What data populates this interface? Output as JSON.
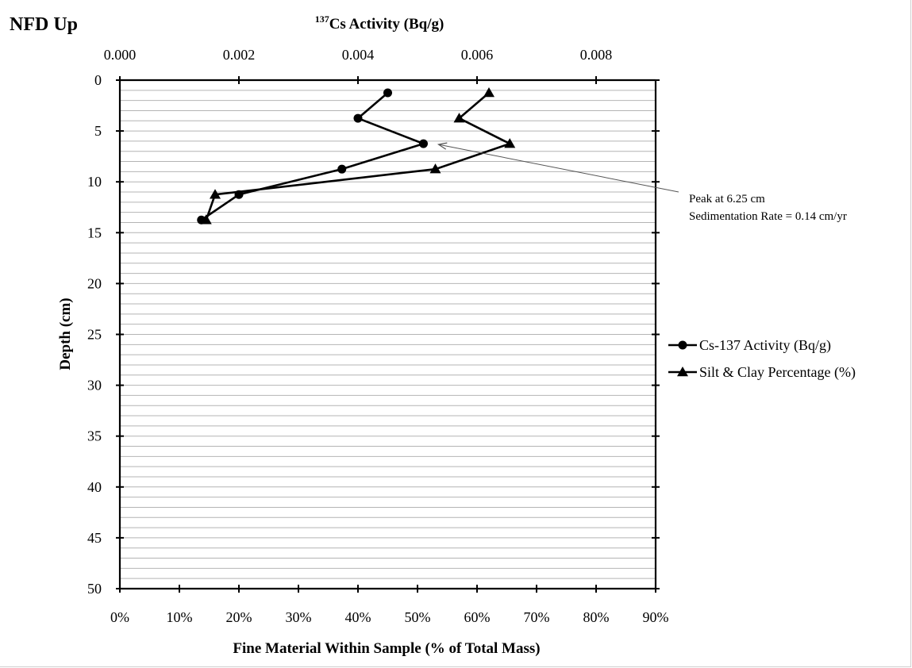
{
  "chart_data": {
    "type": "line",
    "title": "NFD Up",
    "top_axis": {
      "label_superscript": "137",
      "label_text": "Cs Activity (Bq/g)",
      "range": [
        0,
        0.009
      ],
      "ticks": [
        0.0,
        0.002,
        0.004,
        0.006,
        0.008
      ],
      "tick_labels": [
        "0.000",
        "0.002",
        "0.004",
        "0.006",
        "0.008"
      ]
    },
    "bottom_axis": {
      "label": "Fine Material Within Sample (% of Total Mass)",
      "range": [
        0,
        90
      ],
      "ticks": [
        0,
        10,
        20,
        30,
        40,
        50,
        60,
        70,
        80,
        90
      ],
      "tick_labels": [
        "0%",
        "10%",
        "20%",
        "30%",
        "40%",
        "50%",
        "60%",
        "70%",
        "80%",
        "90%"
      ]
    },
    "y_axis": {
      "label": "Depth (cm)",
      "range": [
        0,
        50
      ],
      "reversed": true,
      "ticks": [
        0,
        5,
        10,
        15,
        20,
        25,
        30,
        35,
        40,
        45,
        50
      ],
      "tick_labels": [
        "0",
        "5",
        "10",
        "15",
        "20",
        "25",
        "30",
        "35",
        "40",
        "45",
        "50"
      ],
      "gridline_step": 1
    },
    "grid": true,
    "legend_position": "right",
    "series": [
      {
        "name": "Cs-137 Activity (Bq/g)",
        "axis": "top",
        "marker": "circle",
        "points": [
          {
            "value": 0.0045,
            "depth": 1.25
          },
          {
            "value": 0.004,
            "depth": 3.75
          },
          {
            "value": 0.0051,
            "depth": 6.25
          },
          {
            "value": 0.00373,
            "depth": 8.75
          },
          {
            "value": 0.002,
            "depth": 11.25
          },
          {
            "value": 0.00137,
            "depth": 13.75
          }
        ]
      },
      {
        "name": "Silt & Clay Percentage (%)",
        "axis": "bottom",
        "marker": "triangle",
        "points": [
          {
            "value": 62,
            "depth": 1.25
          },
          {
            "value": 57,
            "depth": 3.75
          },
          {
            "value": 65.5,
            "depth": 6.25
          },
          {
            "value": 53,
            "depth": 8.75
          },
          {
            "value": 16,
            "depth": 11.25
          },
          {
            "value": 14.5,
            "depth": 13.75
          }
        ]
      }
    ],
    "annotation": {
      "lines": [
        "Peak at 6.25 cm",
        "Sedimentation Rate = 0.14 cm/yr"
      ],
      "arrow_target": {
        "value": 0.0053,
        "depth": 6.25
      }
    }
  }
}
